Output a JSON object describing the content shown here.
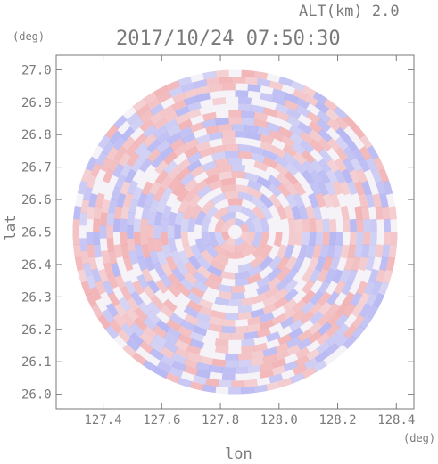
{
  "chart_data": {
    "type": "heatmap",
    "title": "2017/10/24 07:50:30",
    "altitude_label": "ALT(km) 2.0",
    "xlabel": "lon",
    "ylabel": "lat",
    "x_unit": "(deg)",
    "y_unit": "(deg)",
    "xlim": [
      127.24,
      128.46
    ],
    "ylim": [
      25.955,
      27.045
    ],
    "x_ticks": [
      "127.4",
      "127.6",
      "127.8",
      "128.0",
      "128.2",
      "128.4"
    ],
    "x_tick_values": [
      127.4,
      127.6,
      127.8,
      128.0,
      128.2,
      128.4
    ],
    "y_ticks": [
      "26.0",
      "26.1",
      "26.2",
      "26.3",
      "26.4",
      "26.5",
      "26.6",
      "26.7",
      "26.8",
      "26.9",
      "27.0"
    ],
    "y_tick_values": [
      26.0,
      26.1,
      26.2,
      26.3,
      26.4,
      26.5,
      26.6,
      26.7,
      26.8,
      26.9,
      27.0
    ],
    "radar_center": [
      127.85,
      26.5
    ],
    "radar_range_deg_lat": 0.5,
    "colors": {
      "positive": "#f08a8a",
      "negative": "#8f92f0",
      "axis": "#7a7a7a"
    }
  }
}
